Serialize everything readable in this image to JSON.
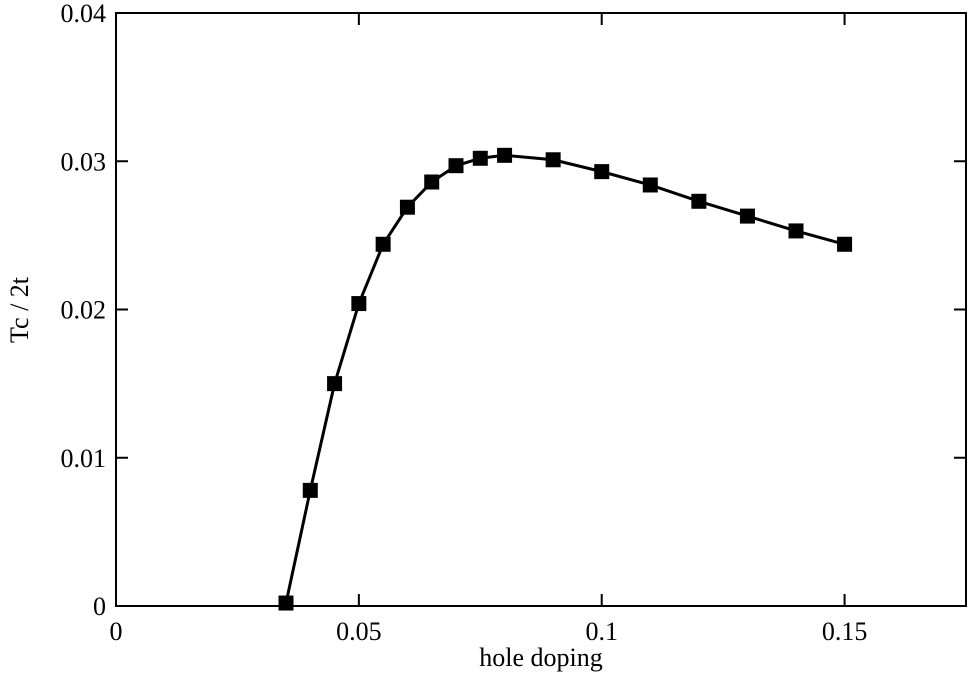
{
  "chart_data": {
    "type": "line",
    "x_label": "hole doping",
    "y_label": "Tc / 2t",
    "x": [
      0.035,
      0.04,
      0.045,
      0.05,
      0.055,
      0.06,
      0.065,
      0.07,
      0.075,
      0.08,
      0.09,
      0.1,
      0.11,
      0.12,
      0.13,
      0.14,
      0.15
    ],
    "series": [
      {
        "color": "#000000",
        "values": [
          0.0002,
          0.0078,
          0.015,
          0.0204,
          0.0244,
          0.0269,
          0.0286,
          0.0297,
          0.0302,
          0.0304,
          0.0301,
          0.0293,
          0.0284,
          0.0273,
          0.0263,
          0.0253,
          0.0244
        ]
      }
    ],
    "xlim": [
      0,
      0.175
    ],
    "xticks": [
      0,
      0.05,
      0.1,
      0.15
    ],
    "ylim": [
      0,
      0.04
    ],
    "yticks": [
      0,
      0.01,
      0.02,
      0.03,
      0.04
    ],
    "grid": false
  }
}
